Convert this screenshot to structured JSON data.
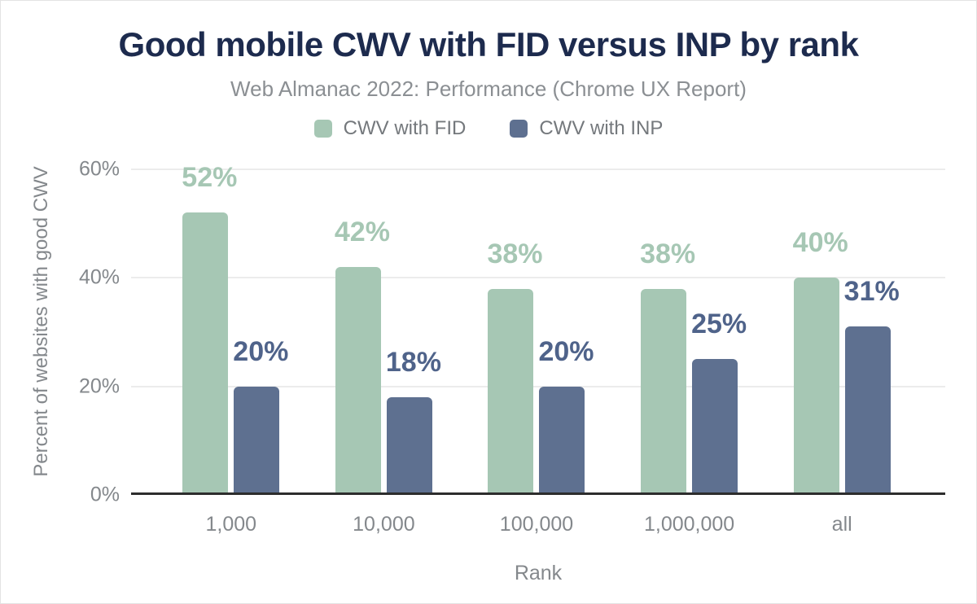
{
  "header": {
    "title": "Good mobile CWV with FID versus INP by rank",
    "subtitle": "Web Almanac 2022: Performance (Chrome UX Report)"
  },
  "chart_data": {
    "type": "bar",
    "title": "Good mobile CWV with FID versus INP by rank",
    "subtitle": "Web Almanac 2022: Performance (Chrome UX Report)",
    "xlabel": "Rank",
    "ylabel": "Percent of websites with good CWV",
    "categories": [
      "1,000",
      "10,000",
      "100,000",
      "1,000,000",
      "all"
    ],
    "series": [
      {
        "name": "CWV with FID",
        "color": "#a6c7b4",
        "label_color": "#a6c7b4",
        "values": [
          52,
          42,
          38,
          38,
          40
        ],
        "labels": [
          "52%",
          "42%",
          "38%",
          "38%",
          "40%"
        ]
      },
      {
        "name": "CWV with INP",
        "color": "#5e7090",
        "label_color": "#4f638a",
        "values": [
          20,
          18,
          20,
          25,
          31
        ],
        "labels": [
          "20%",
          "18%",
          "20%",
          "25%",
          "31%"
        ]
      }
    ],
    "yticks": [
      {
        "value": 0,
        "label": "0%"
      },
      {
        "value": 20,
        "label": "20%"
      },
      {
        "value": 40,
        "label": "40%"
      },
      {
        "value": 60,
        "label": "60%"
      }
    ],
    "ylim": [
      0,
      60
    ],
    "grid": true,
    "legend_position": "top",
    "colors": {
      "title": "#1d2b4e",
      "subtitle": "#8b8f93",
      "axis_text": "#84888c",
      "gridline": "#ececec",
      "axis_line": "#2d2d2d"
    }
  }
}
